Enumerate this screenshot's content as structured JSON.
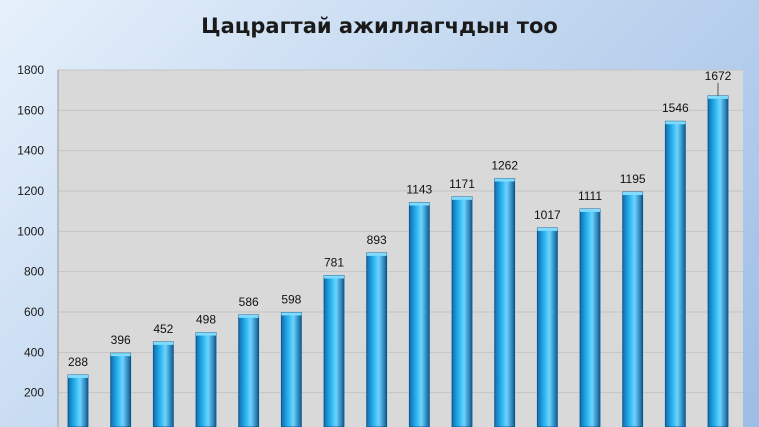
{
  "chart_data": {
    "type": "bar",
    "title": "Цацрагтай ажиллагчдын тоо",
    "xlabel": "",
    "ylabel": "",
    "ylim": [
      0,
      1800
    ],
    "y_ticks": [
      200,
      400,
      600,
      800,
      1000,
      1200,
      1400,
      1600,
      1800
    ],
    "grid": true,
    "legend": "none",
    "values": [
      288,
      396,
      452,
      498,
      586,
      598,
      781,
      893,
      1143,
      1171,
      1262,
      1017,
      1111,
      1195,
      1546,
      1672
    ],
    "bar_color": "#1aa6e6",
    "plot_background": "#d9d9d9"
  }
}
